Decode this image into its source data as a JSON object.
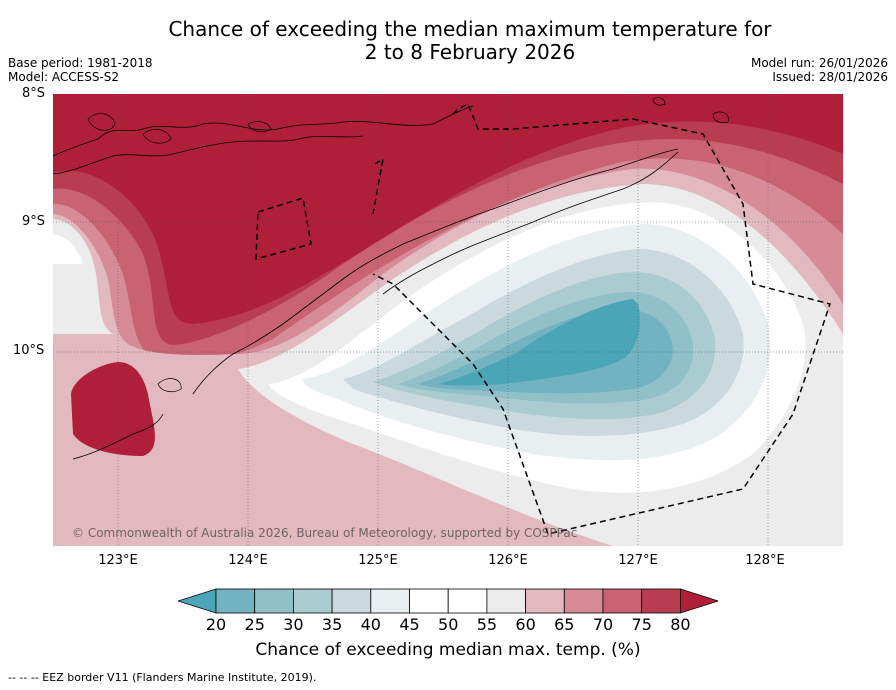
{
  "title_line1": "Chance of exceeding the median maximum temperature for",
  "title_line2": "2 to 8 February 2026",
  "base_period": "Base period: 1981-2018",
  "model": "Model: ACCESS-S2",
  "model_run": "Model run: 26/01/2026",
  "issued": "Issued: 28/01/2026",
  "copyright": "© Commonwealth of Australia 2026, Bureau of Meteorology, supported by COSPPac",
  "footer_legend": "-- -- -- EEZ border V11 (Flanders Marine Institute, 2019).",
  "latitude_labels": [
    "8°S",
    "9°S",
    "10°S"
  ],
  "longitude_labels": [
    "123°E",
    "124°E",
    "125°E",
    "126°E",
    "127°E",
    "128°E"
  ],
  "colorbar": {
    "label": "Chance of exceeding median max. temp. (%)",
    "ticks": [
      "20",
      "25",
      "30",
      "35",
      "40",
      "45",
      "50",
      "55",
      "60",
      "65",
      "70",
      "75",
      "80"
    ],
    "colors": [
      "#4aa5b6",
      "#73b2c0",
      "#91c0c9",
      "#aacbd0",
      "#c9d9dd",
      "#e9eff1",
      "#ffffff",
      "#ffffff",
      "#ececec",
      "#e3b9c0",
      "#d68b97",
      "#c96372",
      "#b83d50",
      "#b01f3a"
    ]
  }
}
